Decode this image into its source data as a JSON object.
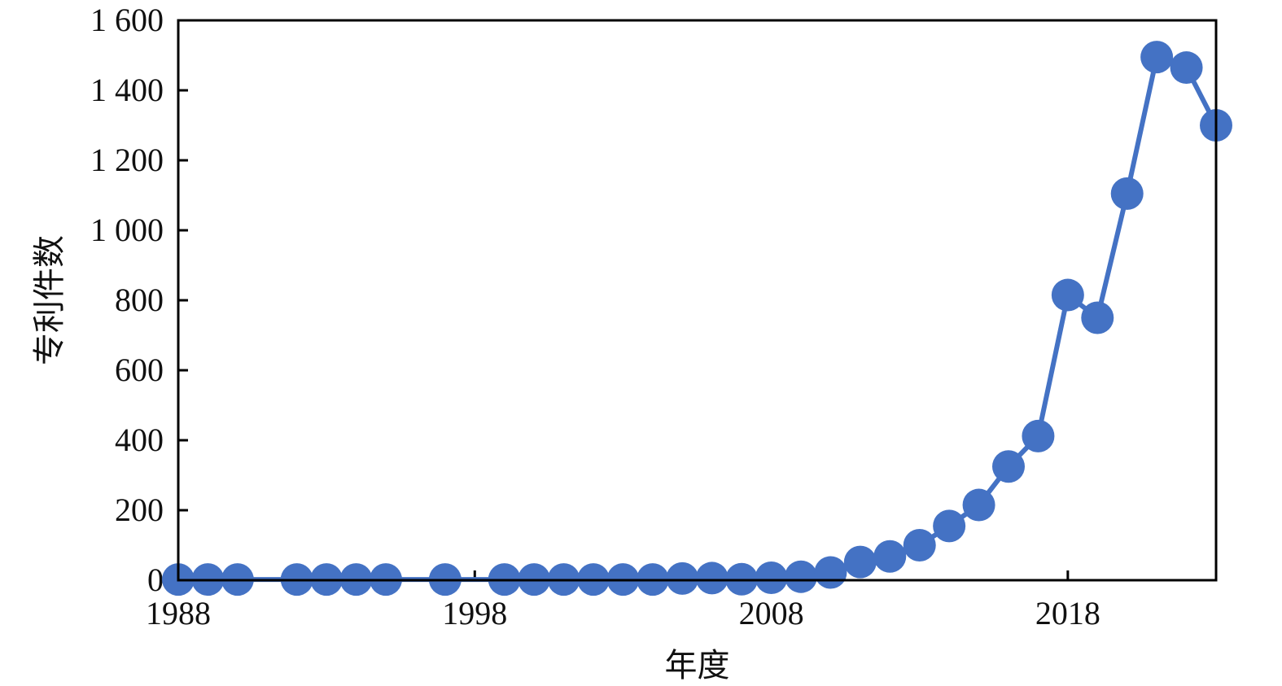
{
  "chart_data": {
    "type": "line",
    "xlabel": "年度",
    "ylabel": "专利件数",
    "xlim": [
      1988,
      2023
    ],
    "ylim": [
      0,
      1600
    ],
    "x_ticks": [
      1988,
      1998,
      2008,
      2018
    ],
    "x_tick_labels": [
      "1988",
      "1998",
      "2008",
      "2018"
    ],
    "y_ticks": [
      0,
      200,
      400,
      600,
      800,
      1000,
      1200,
      1400,
      1600
    ],
    "y_tick_labels": [
      "0",
      "200",
      "400",
      "600",
      "800",
      "1 000",
      "1 200",
      "1 400",
      "1 600"
    ],
    "grid": false,
    "series": [
      {
        "color": "#4472c4",
        "marker": "circle",
        "points": [
          {
            "x": 1988,
            "y": 2
          },
          {
            "x": 1989,
            "y": 2
          },
          {
            "x": 1990,
            "y": 2
          },
          {
            "x": 1992,
            "y": 2
          },
          {
            "x": 1993,
            "y": 2
          },
          {
            "x": 1994,
            "y": 2
          },
          {
            "x": 1995,
            "y": 2
          },
          {
            "x": 1997,
            "y": 2
          },
          {
            "x": 1999,
            "y": 2
          },
          {
            "x": 2000,
            "y": 2
          },
          {
            "x": 2001,
            "y": 2
          },
          {
            "x": 2002,
            "y": 2
          },
          {
            "x": 2003,
            "y": 2
          },
          {
            "x": 2004,
            "y": 2
          },
          {
            "x": 2005,
            "y": 5
          },
          {
            "x": 2006,
            "y": 6
          },
          {
            "x": 2007,
            "y": 3
          },
          {
            "x": 2008,
            "y": 7
          },
          {
            "x": 2009,
            "y": 10
          },
          {
            "x": 2010,
            "y": 22
          },
          {
            "x": 2011,
            "y": 52
          },
          {
            "x": 2012,
            "y": 68
          },
          {
            "x": 2013,
            "y": 100
          },
          {
            "x": 2014,
            "y": 155
          },
          {
            "x": 2015,
            "y": 215
          },
          {
            "x": 2016,
            "y": 325
          },
          {
            "x": 2017,
            "y": 412
          },
          {
            "x": 2018,
            "y": 815
          },
          {
            "x": 2019,
            "y": 750
          },
          {
            "x": 2020,
            "y": 1105
          },
          {
            "x": 2021,
            "y": 1495
          },
          {
            "x": 2022,
            "y": 1465
          },
          {
            "x": 2023,
            "y": 1300
          }
        ]
      }
    ]
  }
}
